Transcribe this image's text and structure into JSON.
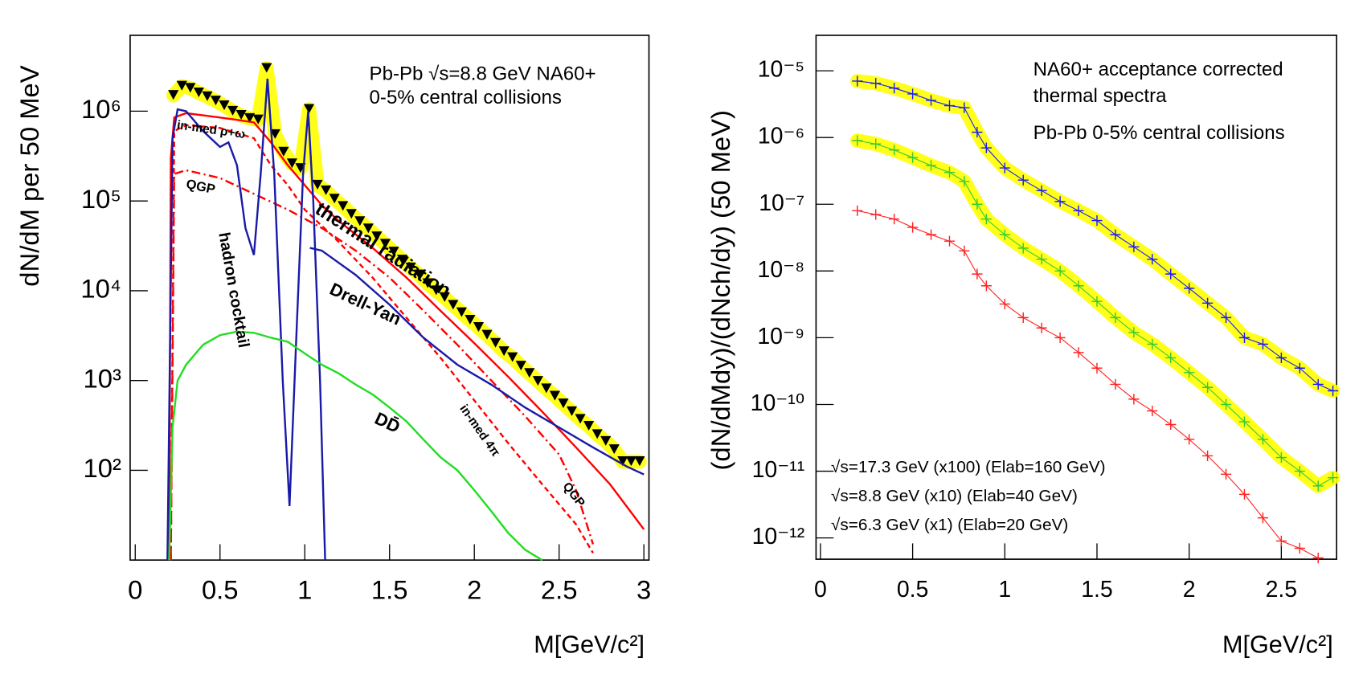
{
  "chart_data": [
    {
      "type": "line",
      "log_y": true,
      "y_label": "dN/dM per 50 MeV",
      "x_label": "M[GeV/c²]",
      "xlim": [
        -0.03,
        3.03
      ],
      "ylim": [
        10,
        7000000
      ],
      "xticks": [
        0,
        0.5,
        1,
        1.5,
        2,
        2.5,
        3
      ],
      "yticks": [
        {
          "value": 100,
          "label": "10²"
        },
        {
          "value": 1000,
          "label": "10³"
        },
        {
          "value": 10000,
          "label": "10⁴"
        },
        {
          "value": 100000,
          "label": "10⁵"
        },
        {
          "value": 1000000,
          "label": "10⁶"
        }
      ],
      "annotations": [
        "Pb-Pb √s=8.8 GeV NA60+",
        "0-5% central collisions",
        "in-med ρ+ω",
        "QGP",
        "hadron cocktail",
        "thermal radiation",
        "Drell-Yan",
        "DD̄",
        "in-med 4π",
        "QGP"
      ],
      "series": [
        {
          "color": "#000000",
          "marker": "triangle",
          "band_color": "#ffff00",
          "x": [
            0.225,
            0.275,
            0.325,
            0.375,
            0.425,
            0.475,
            0.525,
            0.575,
            0.625,
            0.675,
            0.725,
            0.775,
            0.825,
            0.875,
            0.925,
            0.975,
            1.025,
            1.075,
            1.125,
            1.175,
            1.225,
            1.275,
            1.325,
            1.375,
            1.425,
            1.475,
            1.525,
            1.575,
            1.625,
            1.675,
            1.725,
            1.775,
            1.825,
            1.875,
            1.925,
            1.975,
            2.025,
            2.075,
            2.125,
            2.175,
            2.225,
            2.275,
            2.325,
            2.375,
            2.425,
            2.475,
            2.525,
            2.575,
            2.625,
            2.675,
            2.725,
            2.775,
            2.825,
            2.875,
            2.925,
            2.975
          ],
          "values": [
            1500000,
            1900000,
            1800000,
            1600000,
            1450000,
            1300000,
            1150000,
            1000000,
            900000,
            830000,
            800000,
            3000000,
            550000,
            350000,
            260000,
            230000,
            1050000,
            150000,
            130000,
            105000,
            87000,
            71000,
            59000,
            49000,
            40000,
            33000,
            27000,
            22000,
            18000,
            15000,
            12000,
            10000,
            8400,
            6900,
            5700,
            4700,
            3900,
            3200,
            2600,
            2100,
            1800,
            1450,
            1200,
            980,
            810,
            670,
            550,
            450,
            370,
            310,
            250,
            210,
            170,
            125,
            125,
            125
          ]
        },
        {
          "color": "#ff0000",
          "style": "solid",
          "x": [
            0.2,
            0.21,
            0.23,
            0.3,
            0.4,
            0.5,
            0.6,
            0.7,
            0.8,
            0.9,
            1.0,
            1.1,
            1.2,
            1.4,
            1.6,
            1.8,
            2.0,
            2.2,
            2.4,
            2.6,
            2.8,
            3.0
          ],
          "values": [
            10,
            300000,
            850000,
            950000,
            900000,
            850000,
            800000,
            750000,
            450000,
            250000,
            150000,
            90000,
            60000,
            30000,
            14000,
            6000,
            2600,
            1100,
            450,
            180,
            70,
            22
          ]
        },
        {
          "color": "#ff0000",
          "style": "dashed",
          "x": [
            0.21,
            0.23,
            0.3,
            0.5,
            0.7,
            0.8,
            0.9,
            1.0,
            1.2,
            1.4,
            1.6,
            1.8,
            2.0,
            2.2,
            2.4,
            2.6,
            2.7
          ],
          "values": [
            10,
            600000,
            700000,
            650000,
            500000,
            250000,
            150000,
            80000,
            35000,
            14000,
            5000,
            1800,
            600,
            200,
            70,
            25,
            12
          ]
        },
        {
          "color": "#ff0000",
          "style": "dashdot",
          "x": [
            0.21,
            0.23,
            0.3,
            0.5,
            0.7,
            0.9,
            1.1,
            1.3,
            1.5,
            1.7,
            1.9,
            2.1,
            2.3,
            2.5,
            2.6,
            2.7
          ],
          "values": [
            10,
            200000,
            220000,
            180000,
            120000,
            80000,
            50000,
            28000,
            14000,
            6000,
            2500,
            1000,
            400,
            150,
            60,
            15
          ]
        },
        {
          "color": "#1a1aa8",
          "style": "solid",
          "x": [
            0.19,
            0.22,
            0.25,
            0.3,
            0.4,
            0.5,
            0.55,
            0.6,
            0.65,
            0.7,
            0.74,
            0.78,
            0.82,
            0.87,
            0.91,
            0.95,
            0.99,
            1.02,
            1.05,
            1.09,
            1.12
          ],
          "values": [
            10,
            500000,
            1050000,
            1000000,
            600000,
            400000,
            450000,
            250000,
            50000,
            25000,
            200000,
            2300000,
            200000,
            1000,
            40,
            3000,
            200000,
            1000000,
            100000,
            1000,
            10
          ]
        },
        {
          "color": "#1a1aa8",
          "style": "solid",
          "x": [
            1.03,
            1.1,
            1.3,
            1.5,
            1.7,
            1.9,
            2.1,
            2.3,
            2.5,
            2.7,
            2.9,
            3.0
          ],
          "values": [
            30000,
            28000,
            15000,
            7000,
            3000,
            1500,
            900,
            500,
            300,
            180,
            110,
            90
          ]
        },
        {
          "color": "#22dd22",
          "style": "solid",
          "x": [
            0.2,
            0.22,
            0.25,
            0.3,
            0.4,
            0.5,
            0.6,
            0.7,
            0.8,
            0.9,
            1.0,
            1.1,
            1.2,
            1.3,
            1.4,
            1.5,
            1.6,
            1.7,
            1.8,
            1.9,
            2.0,
            2.1,
            2.2,
            2.3,
            2.4
          ],
          "values": [
            10,
            300,
            1000,
            1500,
            2500,
            3200,
            3500,
            3400,
            3000,
            2700,
            2000,
            1500,
            1200,
            900,
            700,
            500,
            350,
            220,
            140,
            100,
            60,
            35,
            20,
            13,
            10
          ]
        }
      ]
    },
    {
      "type": "line",
      "log_y": true,
      "y_label": "(dN/dMdy)/(dNch/dy)  (50 MeV)",
      "x_label": "M[GeV/c²]",
      "xlim": [
        -0.024,
        2.8
      ],
      "ylim": [
        4.8e-13,
        3.4e-05
      ],
      "xticks": [
        0,
        0.5,
        1,
        1.5,
        2,
        2.5
      ],
      "yticks": [
        {
          "value": 1e-05,
          "label": "10⁻⁵"
        },
        {
          "value": 1e-06,
          "label": "10⁻⁶"
        },
        {
          "value": 1e-07,
          "label": "10⁻⁷"
        },
        {
          "value": 1e-08,
          "label": "10⁻⁸"
        },
        {
          "value": 1e-09,
          "label": "10⁻⁹"
        },
        {
          "value": 1e-10,
          "label": "10⁻¹⁰"
        },
        {
          "value": 1e-11,
          "label": "10⁻¹¹"
        },
        {
          "value": 1e-12,
          "label": "10⁻¹²"
        }
      ],
      "annotations": [
        "NA60+ acceptance corrected",
        "thermal spectra",
        "Pb-Pb 0-5% central collisions"
      ],
      "legend": "lower left",
      "series": [
        {
          "name": "√s=17.3 GeV (x100) (Elab=160 GeV)",
          "color": "#1a1aff",
          "marker": "cross",
          "band_color": "#ffff00",
          "x": [
            0.2,
            0.3,
            0.4,
            0.5,
            0.6,
            0.7,
            0.78,
            0.85,
            0.9,
            1.0,
            1.1,
            1.2,
            1.3,
            1.4,
            1.5,
            1.6,
            1.7,
            1.8,
            1.9,
            2.0,
            2.1,
            2.2,
            2.3,
            2.4,
            2.5,
            2.6,
            2.7,
            2.78
          ],
          "values": [
            7e-06,
            6.5e-06,
            5.5e-06,
            4.5e-06,
            3.6e-06,
            3e-06,
            2.8e-06,
            1.2e-06,
            7e-07,
            3.5e-07,
            2.3e-07,
            1.6e-07,
            1.1e-07,
            8e-08,
            5.7e-08,
            3.5e-08,
            2.3e-08,
            1.5e-08,
            9e-09,
            5.5e-09,
            3.3e-09,
            2e-09,
            1e-09,
            8e-10,
            5e-10,
            3.5e-10,
            2e-10,
            1.6e-10
          ]
        },
        {
          "name": "√s=8.8 GeV (x10) (Elab=40 GeV)",
          "color": "#33cc33",
          "marker": "cross",
          "band_color": "#ffff00",
          "x": [
            0.2,
            0.3,
            0.4,
            0.5,
            0.6,
            0.7,
            0.78,
            0.85,
            0.9,
            1.0,
            1.1,
            1.2,
            1.3,
            1.4,
            1.5,
            1.6,
            1.7,
            1.8,
            1.9,
            2.0,
            2.1,
            2.2,
            2.3,
            2.4,
            2.5,
            2.6,
            2.7,
            2.78
          ],
          "values": [
            9e-07,
            8e-07,
            6.5e-07,
            5e-07,
            3.8e-07,
            3e-07,
            2.2e-07,
            1e-07,
            6e-08,
            3.5e-08,
            2.2e-08,
            1.5e-08,
            1e-08,
            6e-09,
            3.5e-09,
            2e-09,
            1.2e-09,
            8e-10,
            5e-10,
            3e-10,
            1.8e-10,
            1e-10,
            5.5e-11,
            3e-11,
            1.6e-11,
            1e-11,
            6e-12,
            8e-12
          ]
        },
        {
          "name": "√s=6.3 GeV (x1) (Elab=20 GeV)",
          "color": "#ff2222",
          "marker": "cross",
          "x": [
            0.2,
            0.3,
            0.4,
            0.5,
            0.6,
            0.7,
            0.78,
            0.85,
            0.9,
            1.0,
            1.1,
            1.2,
            1.3,
            1.4,
            1.5,
            1.6,
            1.7,
            1.8,
            1.9,
            2.0,
            2.1,
            2.2,
            2.3,
            2.4,
            2.5,
            2.6,
            2.7
          ],
          "values": [
            8e-08,
            7e-08,
            6e-08,
            4.5e-08,
            3.5e-08,
            2.8e-08,
            2e-08,
            9e-09,
            6e-09,
            3.2e-09,
            2e-09,
            1.4e-09,
            1e-09,
            6e-10,
            3.5e-10,
            2e-10,
            1.2e-10,
            8e-11,
            5e-11,
            3e-11,
            1.7e-11,
            9e-12,
            4.5e-12,
            2e-12,
            9e-13,
            7e-13,
            5e-13
          ]
        }
      ]
    }
  ]
}
